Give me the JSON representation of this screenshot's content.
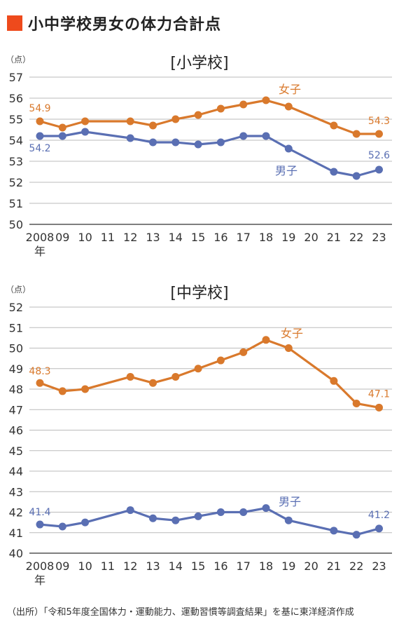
{
  "header": {
    "title": "小中学校男女の体力合計点",
    "accent_color": "#ee4a1c"
  },
  "source_note": "（出所）「令和5年度全国体力・運動能力、運動習慣等調査結果」を基に東洋経済作成",
  "chart_data": [
    {
      "type": "line",
      "title": "[小学校]",
      "unit_label": "（点）",
      "x": [
        "2008",
        "09",
        "10",
        "11",
        "12",
        "13",
        "14",
        "15",
        "16",
        "17",
        "18",
        "19",
        "20",
        "21",
        "22",
        "23"
      ],
      "x_year_suffix": "年",
      "ylim": [
        50,
        57
      ],
      "yticks": [
        50,
        51,
        52,
        53,
        54,
        55,
        56,
        57
      ],
      "grid": true,
      "series": [
        {
          "name": "女子",
          "color": "#d9792c",
          "values": [
            54.9,
            54.6,
            54.9,
            null,
            54.9,
            54.7,
            55.0,
            55.2,
            55.5,
            55.7,
            55.9,
            55.6,
            null,
            54.7,
            54.3,
            54.3
          ],
          "start_label": "54.9",
          "end_label": "54.3"
        },
        {
          "name": "男子",
          "color": "#5a6fb3",
          "values": [
            54.2,
            54.2,
            54.4,
            null,
            54.1,
            53.9,
            53.9,
            53.8,
            53.9,
            54.2,
            54.2,
            53.6,
            null,
            52.5,
            52.3,
            52.6
          ],
          "start_label": "54.2",
          "end_label": "52.6"
        }
      ]
    },
    {
      "type": "line",
      "title": "[中学校]",
      "unit_label": "（点）",
      "x": [
        "2008",
        "09",
        "10",
        "11",
        "12",
        "13",
        "14",
        "15",
        "16",
        "17",
        "18",
        "19",
        "20",
        "21",
        "22",
        "23"
      ],
      "x_year_suffix": "年",
      "ylim": [
        40,
        52
      ],
      "yticks": [
        40,
        41,
        42,
        43,
        44,
        45,
        46,
        47,
        48,
        49,
        50,
        51,
        52
      ],
      "grid": true,
      "series": [
        {
          "name": "女子",
          "color": "#d9792c",
          "values": [
            48.3,
            47.9,
            48.0,
            null,
            48.6,
            48.3,
            48.6,
            49.0,
            49.4,
            49.8,
            50.4,
            50.0,
            null,
            48.4,
            47.3,
            47.1
          ],
          "start_label": "48.3",
          "end_label": "47.1"
        },
        {
          "name": "男子",
          "color": "#5a6fb3",
          "values": [
            41.4,
            41.3,
            41.5,
            null,
            42.1,
            41.7,
            41.6,
            41.8,
            42.0,
            42.0,
            42.2,
            41.6,
            null,
            41.1,
            40.9,
            41.2
          ],
          "start_label": "41.4",
          "end_label": "41.2"
        }
      ]
    }
  ]
}
